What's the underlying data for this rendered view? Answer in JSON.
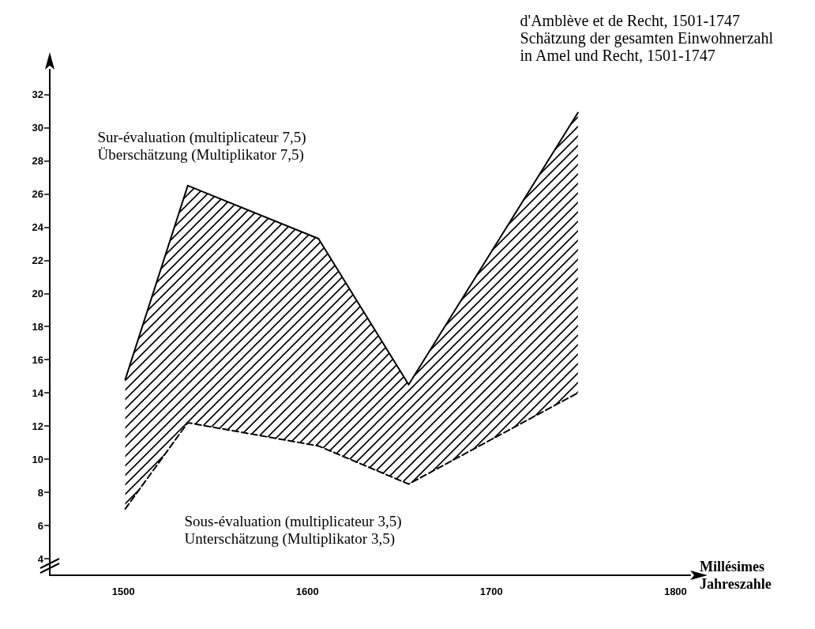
{
  "chart_data": {
    "type": "line",
    "title": "d'Amblève et de Recht, 1501-1747\nSchätzung der gesamten Einwohnerzahl\nin Amel und Recht, 1501-1747",
    "xlabel": "Millésimes\nJahreszahle",
    "x": [
      1501,
      1535,
      1606,
      1655,
      1747
    ],
    "series": [
      {
        "name": "Sur-évaluation (multiplicateur 7,5)\nÜberschätzung (Multiplikator 7,5)",
        "color": "#000000",
        "values": [
          14.8,
          26.5,
          23.3,
          14.5,
          30.9
        ],
        "line_style": "solid",
        "type": "area"
      },
      {
        "name": "Sous-évaluation (multiplicateur 3,5)\nUnterschätzung (Multiplikator 3,5)",
        "color": "#000000",
        "values": [
          7.0,
          12.2,
          10.8,
          8.5,
          14.0
        ],
        "line_style": "dashed"
      }
    ],
    "xlim": [
      1460,
      1808
    ],
    "xticks": [
      1500,
      1600,
      1700,
      1800
    ],
    "ylim": [
      3,
      33.5
    ],
    "yticks": [
      4,
      6,
      8,
      10,
      12,
      14,
      16,
      18,
      20,
      22,
      24,
      26,
      28,
      30,
      32
    ],
    "marker": "none"
  }
}
